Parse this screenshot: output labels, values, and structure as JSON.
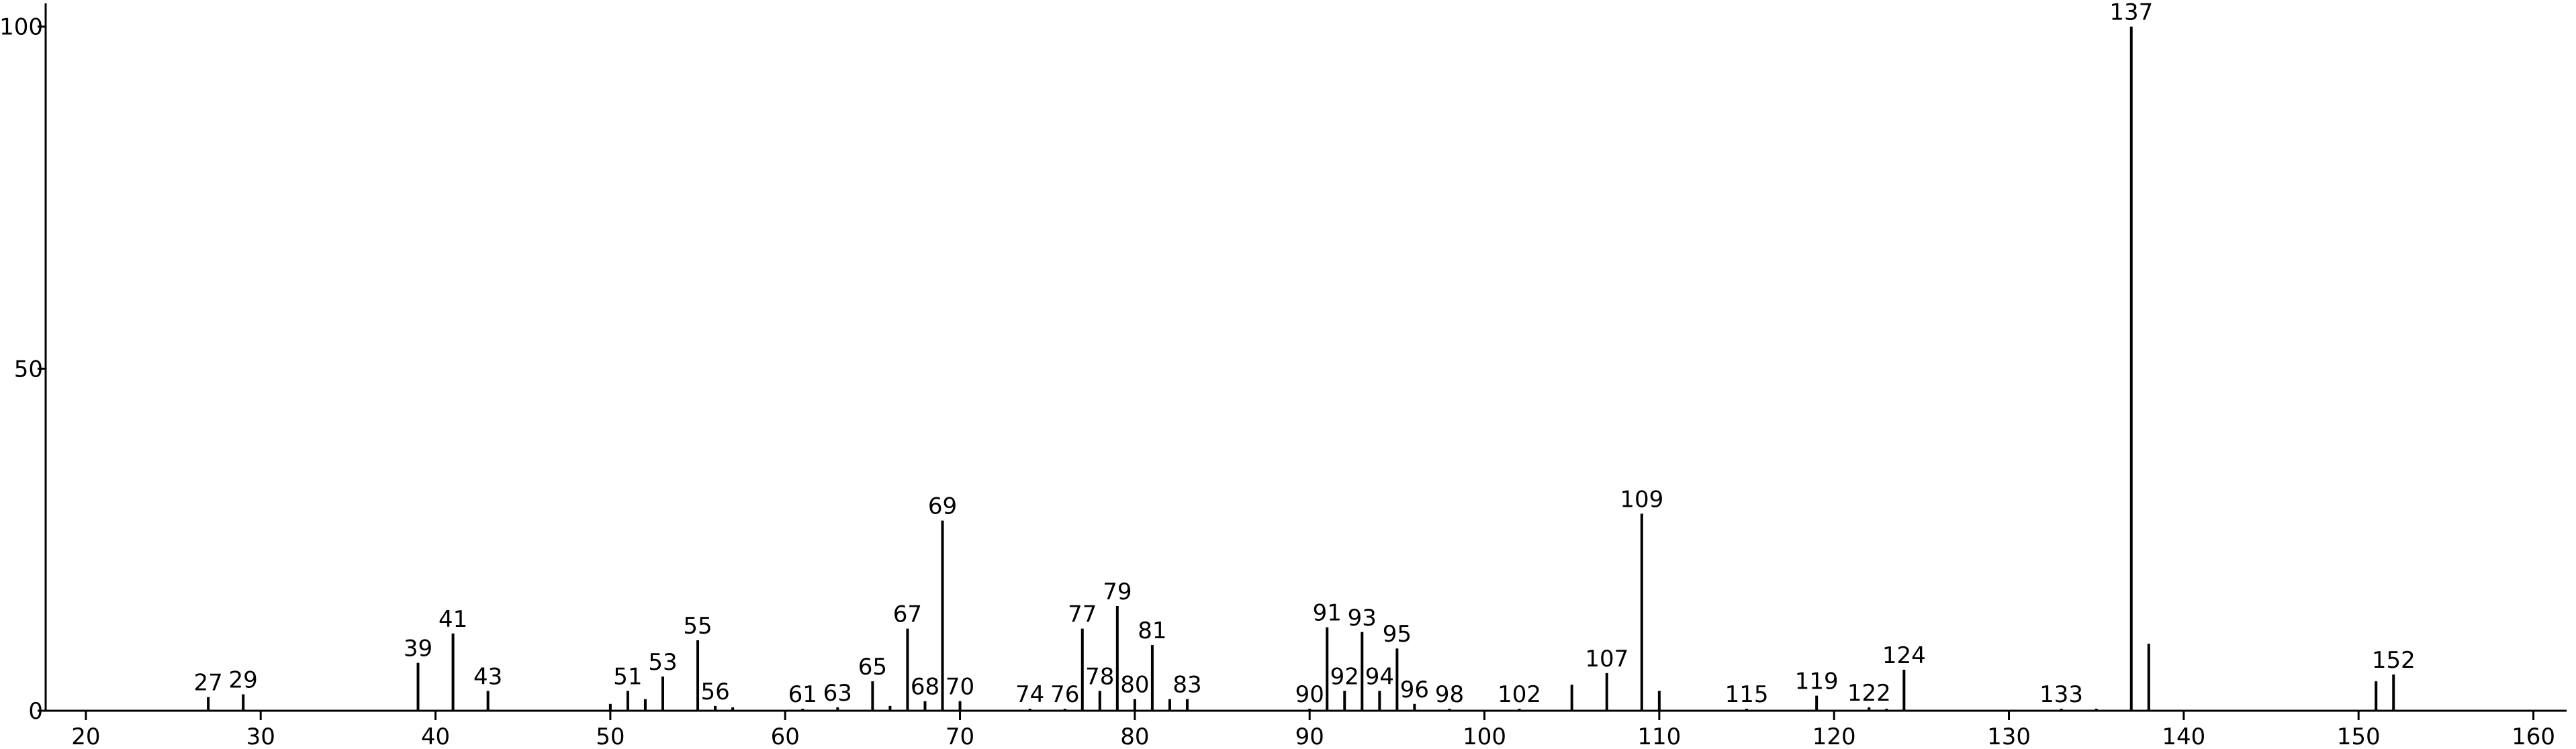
{
  "chart_data": {
    "type": "stem",
    "x": [
      27,
      29,
      39,
      41,
      43,
      50,
      51,
      52,
      53,
      55,
      56,
      57,
      61,
      63,
      65,
      66,
      67,
      68,
      69,
      70,
      74,
      76,
      77,
      78,
      79,
      80,
      81,
      82,
      83,
      90,
      91,
      92,
      93,
      94,
      95,
      96,
      98,
      102,
      105,
      107,
      109,
      110,
      115,
      119,
      122,
      123,
      124,
      133,
      135,
      137,
      138,
      151,
      152
    ],
    "values": [
      2,
      2.4,
      7,
      11.3,
      2.9,
      1,
      2.9,
      1.7,
      5,
      10.3,
      0.7,
      0.5,
      0.3,
      0.5,
      4.3,
      0.7,
      12,
      1.4,
      27.8,
      1.4,
      0.3,
      0.3,
      12,
      2.9,
      15.3,
      1.7,
      9.6,
      1.7,
      1.7,
      0.3,
      12.2,
      2.9,
      11.5,
      2.9,
      9.1,
      1,
      0.3,
      0.3,
      3.8,
      5.5,
      28.8,
      2.9,
      0.3,
      2.2,
      0.5,
      0.3,
      6,
      0.3,
      0.3,
      100,
      9.8,
      4.3,
      5.3
    ],
    "labeled": [
      true,
      true,
      true,
      true,
      true,
      false,
      true,
      false,
      true,
      true,
      true,
      false,
      true,
      true,
      true,
      false,
      true,
      true,
      true,
      true,
      true,
      true,
      true,
      true,
      true,
      true,
      true,
      false,
      true,
      true,
      true,
      true,
      true,
      true,
      true,
      true,
      true,
      true,
      false,
      true,
      true,
      false,
      true,
      true,
      true,
      false,
      true,
      true,
      false,
      true,
      false,
      false,
      true
    ],
    "color": "#000000",
    "xlim": [
      17.7,
      161.9
    ],
    "xticks": [
      20,
      30,
      40,
      50,
      60,
      70,
      80,
      90,
      100,
      110,
      120,
      130,
      140,
      150,
      160
    ],
    "ylim": [
      0,
      103.4
    ],
    "yticks": [
      0,
      50,
      100
    ]
  }
}
